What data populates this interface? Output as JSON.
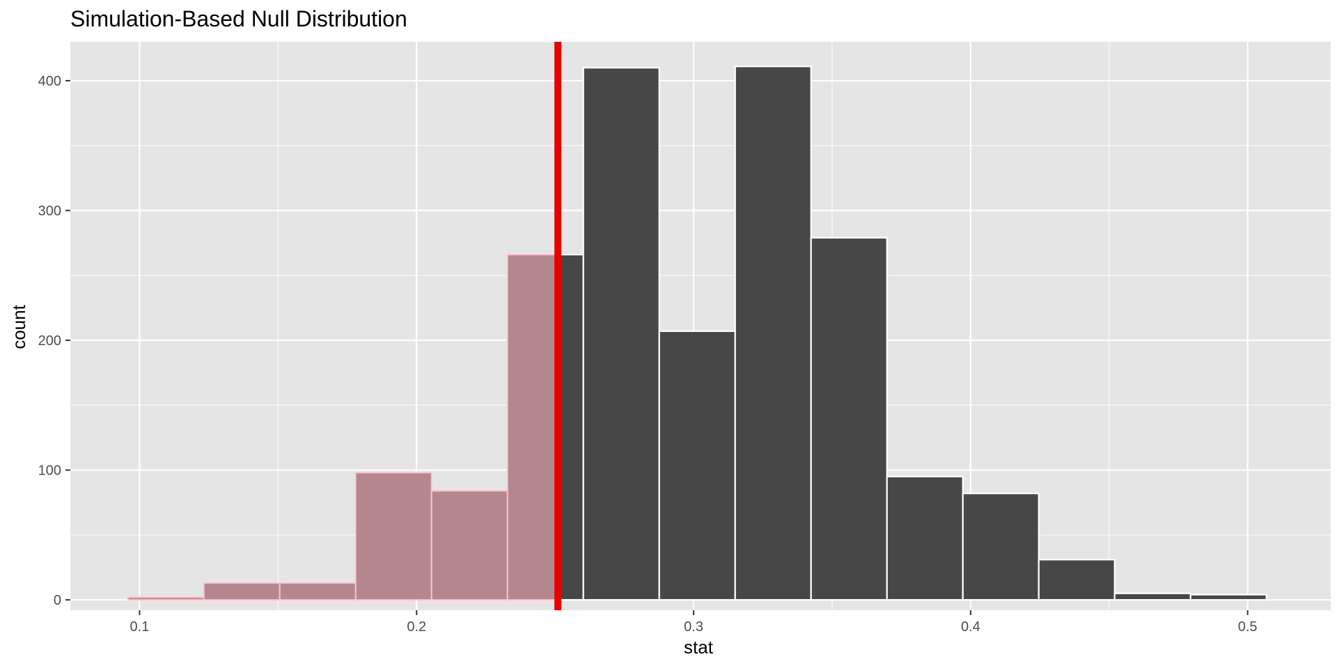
{
  "chart_data": {
    "type": "bar",
    "title": "Simulation-Based Null Distribution",
    "xlabel": "stat",
    "ylabel": "count",
    "xlim": [
      0.075,
      0.53
    ],
    "ylim": [
      -8,
      430
    ],
    "x_ticks": [
      0.1,
      0.2,
      0.3,
      0.4,
      0.5
    ],
    "x_tick_labels": [
      "0.1",
      "0.2",
      "0.3",
      "0.4",
      "0.5"
    ],
    "y_ticks": [
      0,
      100,
      200,
      300,
      400
    ],
    "y_tick_labels": [
      "0",
      "100",
      "200",
      "300",
      "400"
    ],
    "grid": true,
    "bin_width": 0.0274,
    "bins": [
      {
        "x_start": 0.0958,
        "x_end": 0.1232,
        "count": 2
      },
      {
        "x_start": 0.1232,
        "x_end": 0.1506,
        "count": 13
      },
      {
        "x_start": 0.1506,
        "x_end": 0.178,
        "count": 13
      },
      {
        "x_start": 0.178,
        "x_end": 0.2054,
        "count": 98
      },
      {
        "x_start": 0.2054,
        "x_end": 0.2328,
        "count": 84
      },
      {
        "x_start": 0.2328,
        "x_end": 0.2602,
        "count": 266
      },
      {
        "x_start": 0.2602,
        "x_end": 0.2876,
        "count": 410
      },
      {
        "x_start": 0.2876,
        "x_end": 0.315,
        "count": 207
      },
      {
        "x_start": 0.315,
        "x_end": 0.3424,
        "count": 411
      },
      {
        "x_start": 0.3424,
        "x_end": 0.3698,
        "count": 279
      },
      {
        "x_start": 0.3698,
        "x_end": 0.3972,
        "count": 95
      },
      {
        "x_start": 0.3972,
        "x_end": 0.4246,
        "count": 82
      },
      {
        "x_start": 0.4246,
        "x_end": 0.452,
        "count": 31
      },
      {
        "x_start": 0.452,
        "x_end": 0.4794,
        "count": 5
      },
      {
        "x_start": 0.4794,
        "x_end": 0.5068,
        "count": 4
      }
    ],
    "observed_stat": 0.251,
    "shade_direction": "left",
    "colors": {
      "panel_background": "#e5e5e5",
      "grid": "#ffffff",
      "bar_fill": "#474747",
      "bar_outline": "#ffffff",
      "shade_fill": "#b4878e",
      "shade_outline": "#ffc0cb",
      "observed_line": "#e60000"
    }
  }
}
